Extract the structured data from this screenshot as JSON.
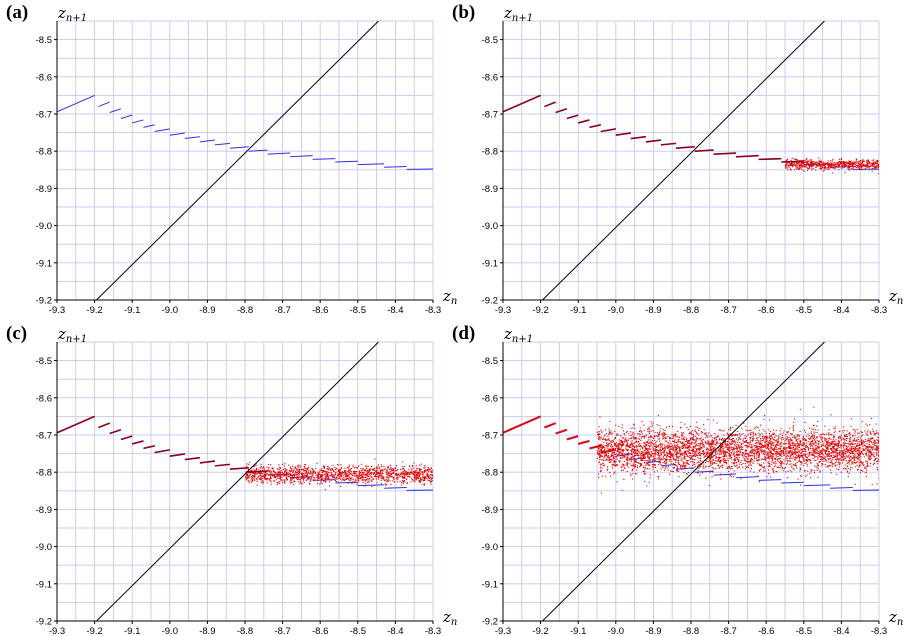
{
  "chart_data": [
    {
      "panel": "(a)",
      "type": "line",
      "xlabel": "z",
      "xlabel_sub": "n",
      "ylabel": "z",
      "ylabel_sub": "n+1",
      "xlim": [
        -9.3,
        -8.3
      ],
      "ylim": [
        -9.2,
        -8.45
      ],
      "x_ticks": [
        "-9.3",
        "-9.2",
        "-9.1",
        "-9.0",
        "-8.9",
        "-8.8",
        "-8.7",
        "-8.6",
        "-8.5",
        "-8.4",
        "-8.3"
      ],
      "y_ticks": [
        "-9.2",
        "-9.1",
        "-9.0",
        "-8.9",
        "-8.8",
        "-8.7",
        "-8.6",
        "-8.5"
      ],
      "grid": true,
      "diagonal": [
        [
          -9.195,
          -9.2
        ],
        [
          -8.445,
          -8.45
        ]
      ],
      "map_segments": [
        [
          [
            -9.3,
            -8.694
          ],
          [
            -9.2,
            -8.65
          ]
        ],
        [
          [
            -9.19,
            -8.68
          ],
          [
            -9.16,
            -8.668
          ]
        ],
        [
          [
            -9.16,
            -8.696
          ],
          [
            -9.13,
            -8.686
          ]
        ],
        [
          [
            -9.13,
            -8.712
          ],
          [
            -9.1,
            -8.703
          ]
        ],
        [
          [
            -9.1,
            -8.724
          ],
          [
            -9.07,
            -8.716
          ]
        ],
        [
          [
            -9.07,
            -8.736
          ],
          [
            -9.04,
            -8.729
          ]
        ],
        [
          [
            -9.04,
            -8.747
          ],
          [
            -9.0,
            -8.74
          ]
        ],
        [
          [
            -9.0,
            -8.757
          ],
          [
            -8.96,
            -8.751
          ]
        ],
        [
          [
            -8.96,
            -8.766
          ],
          [
            -8.92,
            -8.761
          ]
        ],
        [
          [
            -8.92,
            -8.775
          ],
          [
            -8.88,
            -8.77
          ]
        ],
        [
          [
            -8.88,
            -8.783
          ],
          [
            -8.84,
            -8.779
          ]
        ],
        [
          [
            -8.84,
            -8.792
          ],
          [
            -8.79,
            -8.788
          ]
        ],
        [
          [
            -8.79,
            -8.8
          ],
          [
            -8.74,
            -8.797
          ]
        ],
        [
          [
            -8.74,
            -8.808
          ],
          [
            -8.68,
            -8.805
          ]
        ],
        [
          [
            -8.68,
            -8.815
          ],
          [
            -8.62,
            -8.812
          ]
        ],
        [
          [
            -8.62,
            -8.822
          ],
          [
            -8.56,
            -8.82
          ]
        ],
        [
          [
            -8.56,
            -8.829
          ],
          [
            -8.5,
            -8.827
          ]
        ],
        [
          [
            -8.5,
            -8.836
          ],
          [
            -8.43,
            -8.834
          ]
        ],
        [
          [
            -8.43,
            -8.843
          ],
          [
            -8.37,
            -8.841
          ]
        ],
        [
          [
            -8.37,
            -8.849
          ],
          [
            -8.3,
            -8.848
          ]
        ]
      ],
      "noise": {
        "x_start": -9.3,
        "x_end": -9.3,
        "y_center": -8.84,
        "spread": 0.0,
        "count": 0
      },
      "colors": {
        "map": "#3030e0",
        "grid": "#c8c8f4",
        "diagonal": "#000000",
        "noise": "#e00000"
      }
    },
    {
      "panel": "(b)",
      "type": "line",
      "xlabel": "z",
      "xlabel_sub": "n",
      "ylabel": "z",
      "ylabel_sub": "n+1",
      "xlim": [
        -9.3,
        -8.3
      ],
      "ylim": [
        -9.2,
        -8.45
      ],
      "x_ticks": [
        "-9.3",
        "-9.2",
        "-9.1",
        "-9.0",
        "-8.9",
        "-8.8",
        "-8.7",
        "-8.6",
        "-8.5",
        "-8.4",
        "-8.3"
      ],
      "y_ticks": [
        "-9.2",
        "-9.1",
        "-9.0",
        "-8.9",
        "-8.8",
        "-8.7",
        "-8.6",
        "-8.5"
      ],
      "grid": true,
      "diagonal": [
        [
          -9.195,
          -9.2
        ],
        [
          -8.445,
          -8.45
        ]
      ],
      "map_segments": [
        [
          [
            -9.3,
            -8.694
          ],
          [
            -9.2,
            -8.65
          ]
        ],
        [
          [
            -9.19,
            -8.68
          ],
          [
            -9.16,
            -8.668
          ]
        ],
        [
          [
            -9.16,
            -8.696
          ],
          [
            -9.13,
            -8.686
          ]
        ],
        [
          [
            -9.13,
            -8.712
          ],
          [
            -9.1,
            -8.703
          ]
        ],
        [
          [
            -9.1,
            -8.724
          ],
          [
            -9.07,
            -8.716
          ]
        ],
        [
          [
            -9.07,
            -8.736
          ],
          [
            -9.04,
            -8.729
          ]
        ],
        [
          [
            -9.04,
            -8.747
          ],
          [
            -9.0,
            -8.74
          ]
        ],
        [
          [
            -9.0,
            -8.757
          ],
          [
            -8.96,
            -8.751
          ]
        ],
        [
          [
            -8.96,
            -8.766
          ],
          [
            -8.92,
            -8.761
          ]
        ],
        [
          [
            -8.92,
            -8.775
          ],
          [
            -8.88,
            -8.77
          ]
        ],
        [
          [
            -8.88,
            -8.783
          ],
          [
            -8.84,
            -8.779
          ]
        ],
        [
          [
            -8.84,
            -8.792
          ],
          [
            -8.79,
            -8.788
          ]
        ],
        [
          [
            -8.79,
            -8.8
          ],
          [
            -8.74,
            -8.797
          ]
        ],
        [
          [
            -8.74,
            -8.808
          ],
          [
            -8.68,
            -8.805
          ]
        ],
        [
          [
            -8.68,
            -8.815
          ],
          [
            -8.62,
            -8.812
          ]
        ],
        [
          [
            -8.62,
            -8.822
          ],
          [
            -8.56,
            -8.82
          ]
        ],
        [
          [
            -8.56,
            -8.829
          ],
          [
            -8.5,
            -8.827
          ]
        ],
        [
          [
            -8.5,
            -8.836
          ],
          [
            -8.43,
            -8.834
          ]
        ],
        [
          [
            -8.43,
            -8.843
          ],
          [
            -8.37,
            -8.841
          ]
        ],
        [
          [
            -8.37,
            -8.849
          ],
          [
            -8.3,
            -8.848
          ]
        ]
      ],
      "noise": {
        "x_start": -8.55,
        "x_end": -8.3,
        "y_center": -8.834,
        "spread": 0.007,
        "count": 650
      },
      "colors": {
        "map": "#3030e0",
        "grid": "#c8c8f4",
        "diagonal": "#000000",
        "noise": "#e00000"
      }
    },
    {
      "panel": "(c)",
      "type": "line",
      "xlabel": "z",
      "xlabel_sub": "n",
      "ylabel": "z",
      "ylabel_sub": "n+1",
      "xlim": [
        -9.3,
        -8.3
      ],
      "ylim": [
        -9.2,
        -8.45
      ],
      "x_ticks": [
        "-9.3",
        "-9.2",
        "-9.1",
        "-9.0",
        "-8.9",
        "-8.8",
        "-8.7",
        "-8.6",
        "-8.5",
        "-8.4",
        "-8.3"
      ],
      "y_ticks": [
        "-9.2",
        "-9.1",
        "-9.0",
        "-8.9",
        "-8.8",
        "-8.7",
        "-8.6",
        "-8.5"
      ],
      "grid": true,
      "diagonal": [
        [
          -9.195,
          -9.2
        ],
        [
          -8.445,
          -8.45
        ]
      ],
      "map_segments": [
        [
          [
            -9.3,
            -8.694
          ],
          [
            -9.2,
            -8.65
          ]
        ],
        [
          [
            -9.19,
            -8.68
          ],
          [
            -9.16,
            -8.668
          ]
        ],
        [
          [
            -9.16,
            -8.696
          ],
          [
            -9.13,
            -8.686
          ]
        ],
        [
          [
            -9.13,
            -8.712
          ],
          [
            -9.1,
            -8.703
          ]
        ],
        [
          [
            -9.1,
            -8.724
          ],
          [
            -9.07,
            -8.716
          ]
        ],
        [
          [
            -9.07,
            -8.736
          ],
          [
            -9.04,
            -8.729
          ]
        ],
        [
          [
            -9.04,
            -8.747
          ],
          [
            -9.0,
            -8.74
          ]
        ],
        [
          [
            -9.0,
            -8.757
          ],
          [
            -8.96,
            -8.751
          ]
        ],
        [
          [
            -8.96,
            -8.766
          ],
          [
            -8.92,
            -8.761
          ]
        ],
        [
          [
            -8.92,
            -8.775
          ],
          [
            -8.88,
            -8.77
          ]
        ],
        [
          [
            -8.88,
            -8.783
          ],
          [
            -8.84,
            -8.779
          ]
        ],
        [
          [
            -8.84,
            -8.792
          ],
          [
            -8.79,
            -8.788
          ]
        ],
        [
          [
            -8.79,
            -8.8
          ],
          [
            -8.74,
            -8.797
          ]
        ],
        [
          [
            -8.74,
            -8.808
          ],
          [
            -8.68,
            -8.805
          ]
        ],
        [
          [
            -8.68,
            -8.815
          ],
          [
            -8.62,
            -8.812
          ]
        ],
        [
          [
            -8.62,
            -8.822
          ],
          [
            -8.56,
            -8.82
          ]
        ],
        [
          [
            -8.56,
            -8.829
          ],
          [
            -8.5,
            -8.827
          ]
        ],
        [
          [
            -8.5,
            -8.836
          ],
          [
            -8.43,
            -8.834
          ]
        ],
        [
          [
            -8.43,
            -8.843
          ],
          [
            -8.37,
            -8.841
          ]
        ],
        [
          [
            -8.37,
            -8.849
          ],
          [
            -8.3,
            -8.848
          ]
        ]
      ],
      "noise": {
        "x_start": -8.8,
        "x_end": -8.3,
        "y_center": -8.805,
        "spread": 0.012,
        "count": 1500
      },
      "colors": {
        "map": "#3030e0",
        "grid": "#c8c8f4",
        "diagonal": "#000000",
        "noise": "#e00000"
      }
    },
    {
      "panel": "(d)",
      "type": "line",
      "xlabel": "z",
      "xlabel_sub": "n",
      "ylabel": "z",
      "ylabel_sub": "n+1",
      "xlim": [
        -9.3,
        -8.3
      ],
      "ylim": [
        -9.2,
        -8.45
      ],
      "x_ticks": [
        "-9.3",
        "-9.2",
        "-9.1",
        "-9.0",
        "-8.9",
        "-8.8",
        "-8.7",
        "-8.6",
        "-8.5",
        "-8.4",
        "-8.3"
      ],
      "y_ticks": [
        "-9.2",
        "-9.1",
        "-9.0",
        "-8.9",
        "-8.8",
        "-8.7",
        "-8.6",
        "-8.5"
      ],
      "grid": true,
      "diagonal": [
        [
          -9.195,
          -9.2
        ],
        [
          -8.445,
          -8.45
        ]
      ],
      "map_segments": [
        [
          [
            -9.3,
            -8.694
          ],
          [
            -9.2,
            -8.65
          ]
        ],
        [
          [
            -9.19,
            -8.68
          ],
          [
            -9.16,
            -8.668
          ]
        ],
        [
          [
            -9.16,
            -8.696
          ],
          [
            -9.13,
            -8.686
          ]
        ],
        [
          [
            -9.13,
            -8.712
          ],
          [
            -9.1,
            -8.703
          ]
        ],
        [
          [
            -9.1,
            -8.724
          ],
          [
            -9.07,
            -8.716
          ]
        ],
        [
          [
            -9.07,
            -8.736
          ],
          [
            -9.04,
            -8.729
          ]
        ],
        [
          [
            -9.04,
            -8.747
          ],
          [
            -9.0,
            -8.74
          ]
        ],
        [
          [
            -9.0,
            -8.757
          ],
          [
            -8.96,
            -8.751
          ]
        ],
        [
          [
            -8.96,
            -8.766
          ],
          [
            -8.92,
            -8.761
          ]
        ],
        [
          [
            -8.92,
            -8.775
          ],
          [
            -8.88,
            -8.77
          ]
        ],
        [
          [
            -8.88,
            -8.783
          ],
          [
            -8.84,
            -8.779
          ]
        ],
        [
          [
            -8.84,
            -8.792
          ],
          [
            -8.79,
            -8.788
          ]
        ],
        [
          [
            -8.79,
            -8.8
          ],
          [
            -8.74,
            -8.797
          ]
        ],
        [
          [
            -8.74,
            -8.808
          ],
          [
            -8.68,
            -8.805
          ]
        ],
        [
          [
            -8.68,
            -8.815
          ],
          [
            -8.62,
            -8.812
          ]
        ],
        [
          [
            -8.62,
            -8.822
          ],
          [
            -8.56,
            -8.82
          ]
        ],
        [
          [
            -8.56,
            -8.829
          ],
          [
            -8.5,
            -8.827
          ]
        ],
        [
          [
            -8.5,
            -8.836
          ],
          [
            -8.43,
            -8.834
          ]
        ],
        [
          [
            -8.43,
            -8.843
          ],
          [
            -8.37,
            -8.841
          ]
        ],
        [
          [
            -8.37,
            -8.849
          ],
          [
            -8.3,
            -8.848
          ]
        ]
      ],
      "noise": {
        "x_start": -9.05,
        "x_end": -8.3,
        "y_center": -8.74,
        "spread": 0.03,
        "count": 4200
      },
      "colors": {
        "map": "#3030e0",
        "grid": "#c8c8f4",
        "diagonal": "#000000",
        "noise": "#e00000"
      }
    }
  ]
}
